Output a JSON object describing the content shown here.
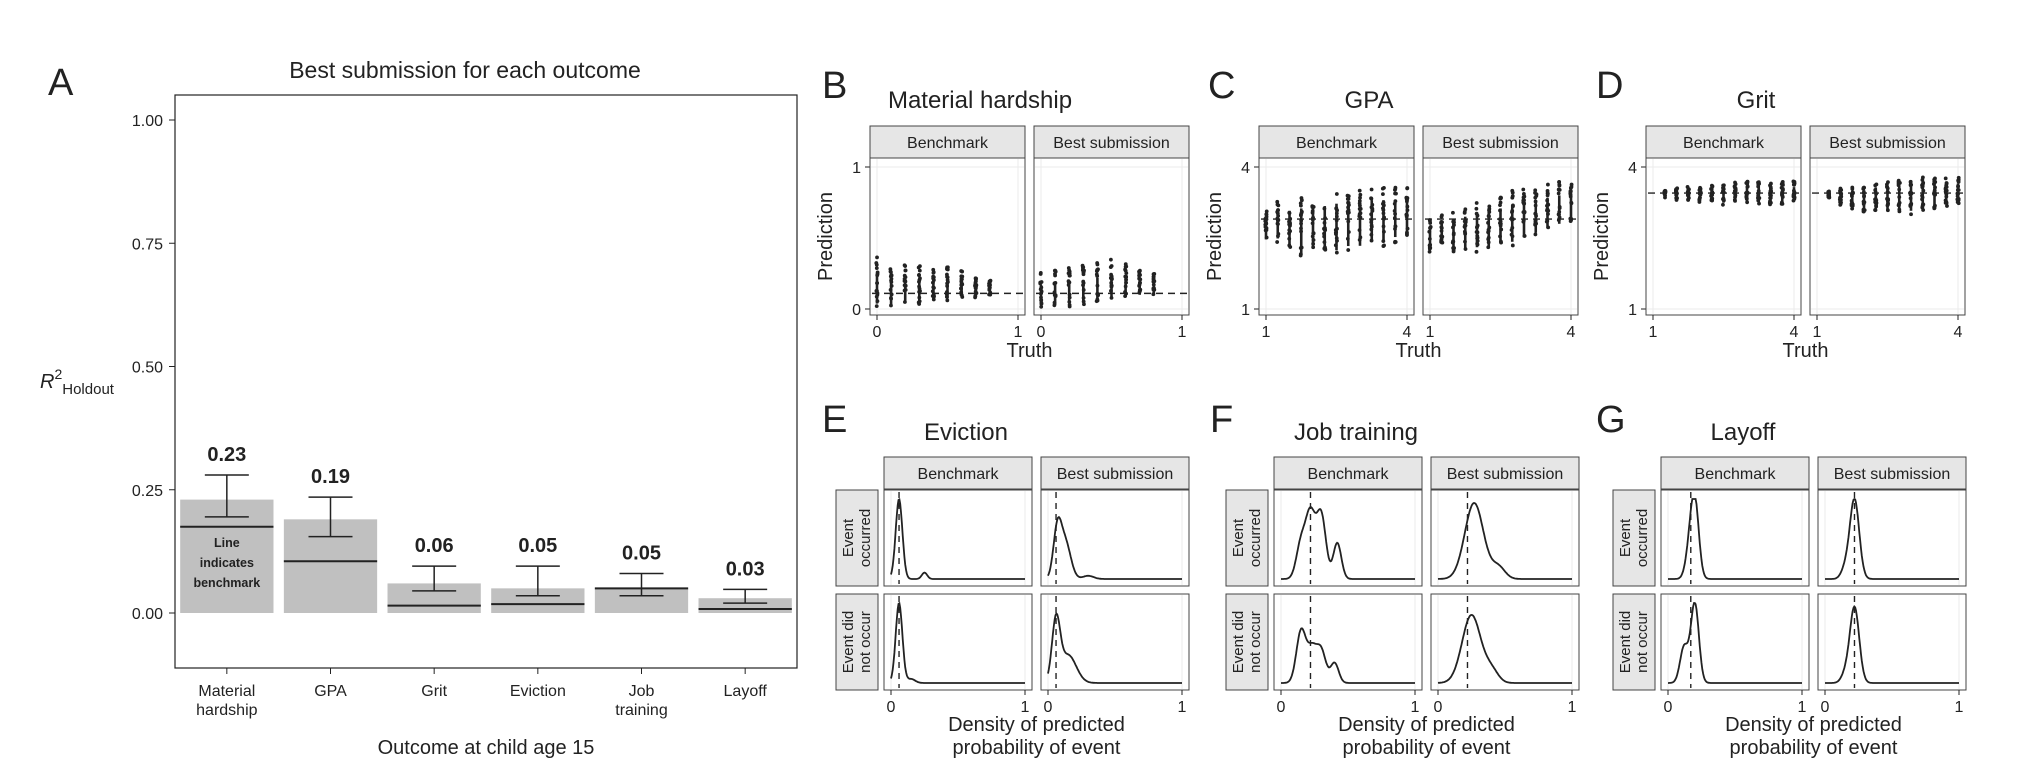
{
  "figure": {
    "panel_letters": {
      "A": "A",
      "B": "B",
      "C": "C",
      "D": "D",
      "E": "E",
      "F": "F",
      "G": "G"
    },
    "colors": {
      "bar": "#c0c0c0",
      "ink": "#222222",
      "strip": "#e6e6e6",
      "frame": "#444444",
      "grid": "#ebebeb"
    }
  },
  "chart_data": [
    {
      "id": "A",
      "type": "bar",
      "title": "Best submission for each outcome",
      "xlabel": "Outcome at child age 15",
      "ylabel": "R",
      "ylabel_sup": "2",
      "ylabel_sub": "Holdout",
      "ylim": [
        0,
        1
      ],
      "yticks": [
        "0.00",
        "0.25",
        "0.50",
        "0.75",
        "1.00"
      ],
      "categories": [
        [
          "Material",
          "hardship"
        ],
        [
          "GPA"
        ],
        [
          "Grit"
        ],
        [
          "Eviction"
        ],
        [
          "Job",
          "training"
        ],
        [
          "Layoff"
        ]
      ],
      "values": [
        0.23,
        0.19,
        0.06,
        0.05,
        0.05,
        0.03
      ],
      "value_labels": [
        "0.23",
        "0.19",
        "0.06",
        "0.05",
        "0.05",
        "0.03"
      ],
      "error_low": [
        0.195,
        0.155,
        0.045,
        0.035,
        0.035,
        0.02
      ],
      "error_high": [
        0.28,
        0.235,
        0.095,
        0.095,
        0.08,
        0.048
      ],
      "benchmark": [
        0.175,
        0.105,
        0.015,
        0.018,
        0.05,
        0.008
      ],
      "annotation": [
        "Line",
        "indicates",
        "benchmark"
      ]
    },
    {
      "id": "B",
      "type": "scatter",
      "title": "Material hardship",
      "xlabel": "Truth",
      "ylabel": "Prediction",
      "facets": [
        "Benchmark",
        "Best submission"
      ],
      "xlim": [
        0,
        1
      ],
      "ylim": [
        0,
        1
      ],
      "xticks": [
        "0",
        "1"
      ],
      "yticks": [
        "0",
        "1"
      ],
      "x_levels": [
        0,
        0.1,
        0.2,
        0.3,
        0.4,
        0.5,
        0.6,
        0.7,
        0.8
      ],
      "series": [
        {
          "facet": "Benchmark",
          "center": [
            0.09,
            0.1,
            0.1,
            0.11,
            0.11,
            0.12,
            0.12,
            0.12,
            0.12
          ],
          "lo": [
            0.0,
            0.0,
            0.02,
            0.03,
            0.04,
            0.05,
            0.07,
            0.08,
            0.1
          ],
          "hi": [
            0.38,
            0.3,
            0.31,
            0.31,
            0.3,
            0.3,
            0.28,
            0.22,
            0.2
          ]
        },
        {
          "facet": "Best submission",
          "center": [
            0.07,
            0.08,
            0.09,
            0.1,
            0.11,
            0.12,
            0.13,
            0.12,
            0.11
          ],
          "lo": [
            0.0,
            0.0,
            0.01,
            0.02,
            0.03,
            0.05,
            0.06,
            0.08,
            0.09
          ],
          "hi": [
            0.27,
            0.28,
            0.3,
            0.31,
            0.33,
            0.35,
            0.33,
            0.28,
            0.25
          ]
        }
      ],
      "reference_line": 0.11
    },
    {
      "id": "C",
      "type": "scatter",
      "title": "GPA",
      "xlabel": "Truth",
      "ylabel": "Prediction",
      "facets": [
        "Benchmark",
        "Best submission"
      ],
      "xlim": [
        1,
        4
      ],
      "ylim": [
        1,
        4
      ],
      "xticks": [
        "1",
        "4"
      ],
      "yticks": [
        "1",
        "4"
      ],
      "x_levels": [
        1.0,
        1.25,
        1.5,
        1.75,
        2.0,
        2.25,
        2.5,
        2.75,
        3.0,
        3.25,
        3.5,
        3.75,
        4.0
      ],
      "series": [
        {
          "facet": "Benchmark",
          "center": [
            2.8,
            2.85,
            2.85,
            2.9,
            2.9,
            2.9,
            2.95,
            2.95,
            2.95,
            3.0,
            3.0,
            3.0,
            3.0
          ],
          "lo": [
            2.4,
            2.4,
            2.2,
            2.0,
            2.2,
            2.15,
            2.1,
            2.2,
            2.2,
            2.3,
            2.3,
            2.4,
            2.5
          ],
          "hi": [
            3.1,
            3.3,
            3.3,
            3.35,
            3.4,
            3.45,
            3.5,
            3.5,
            3.55,
            3.6,
            3.6,
            3.6,
            3.6
          ]
        },
        {
          "facet": "Best submission",
          "center": [
            2.55,
            2.6,
            2.6,
            2.7,
            2.75,
            2.8,
            2.85,
            2.9,
            2.95,
            3.0,
            3.05,
            3.1,
            3.15
          ],
          "lo": [
            2.2,
            2.3,
            2.2,
            2.15,
            2.2,
            2.2,
            2.3,
            2.3,
            2.4,
            2.5,
            2.6,
            2.7,
            2.8
          ],
          "hi": [
            2.9,
            3.0,
            3.05,
            3.2,
            3.25,
            3.35,
            3.4,
            3.5,
            3.55,
            3.6,
            3.65,
            3.7,
            3.7
          ]
        }
      ],
      "reference_line": 2.9
    },
    {
      "id": "D",
      "type": "scatter",
      "title": "Grit",
      "xlabel": "Truth",
      "ylabel": "Prediction",
      "facets": [
        "Benchmark",
        "Best submission"
      ],
      "xlim": [
        1,
        4
      ],
      "ylim": [
        1,
        4
      ],
      "xticks": [
        "1",
        "4"
      ],
      "yticks": [
        "1",
        "4"
      ],
      "x_levels": [
        1.25,
        1.5,
        1.75,
        2.0,
        2.25,
        2.5,
        2.75,
        3.0,
        3.25,
        3.5,
        3.75,
        4.0
      ],
      "series": [
        {
          "facet": "Benchmark",
          "center": [
            3.45,
            3.45,
            3.45,
            3.45,
            3.45,
            3.45,
            3.45,
            3.45,
            3.45,
            3.45,
            3.45,
            3.45
          ],
          "lo": [
            3.35,
            3.3,
            3.3,
            3.25,
            3.25,
            3.2,
            3.2,
            3.2,
            3.2,
            3.2,
            3.2,
            3.25
          ],
          "hi": [
            3.5,
            3.55,
            3.6,
            3.6,
            3.65,
            3.65,
            3.7,
            3.7,
            3.7,
            3.7,
            3.7,
            3.7
          ]
        },
        {
          "facet": "Best submission",
          "center": [
            3.4,
            3.4,
            3.4,
            3.42,
            3.44,
            3.45,
            3.46,
            3.47,
            3.48,
            3.5,
            3.5,
            3.5
          ],
          "lo": [
            3.3,
            3.2,
            3.1,
            3.0,
            3.05,
            3.0,
            2.95,
            3.0,
            3.05,
            3.1,
            3.15,
            3.2
          ],
          "hi": [
            3.5,
            3.55,
            3.6,
            3.6,
            3.7,
            3.7,
            3.75,
            3.75,
            3.8,
            3.8,
            3.8,
            3.8
          ]
        }
      ],
      "reference_line": 3.45
    },
    {
      "id": "E",
      "type": "area",
      "title": "Eviction",
      "xlabel": [
        "Density of predicted",
        "probability of event"
      ],
      "facets": [
        "Benchmark",
        "Best submission"
      ],
      "rows": [
        [
          "Event",
          "occurred"
        ],
        [
          "Event did",
          "not occur"
        ]
      ],
      "xlim": [
        0,
        1
      ],
      "xticks": [
        "0",
        "1"
      ],
      "cells": [
        {
          "row": 0,
          "facet": 0,
          "vline": 0.06,
          "peaks": [
            [
              0.06,
              1.0,
              0.025
            ],
            [
              0.25,
              0.08,
              0.02
            ]
          ]
        },
        {
          "row": 0,
          "facet": 1,
          "vline": 0.06,
          "peaks": [
            [
              0.07,
              0.6,
              0.03
            ],
            [
              0.13,
              0.45,
              0.04
            ],
            [
              0.3,
              0.04,
              0.04
            ]
          ]
        },
        {
          "row": 1,
          "facet": 0,
          "vline": 0.06,
          "peaks": [
            [
              0.06,
              1.0,
              0.025
            ],
            [
              0.15,
              0.05,
              0.03
            ]
          ]
        },
        {
          "row": 1,
          "facet": 1,
          "vline": 0.06,
          "peaks": [
            [
              0.06,
              0.75,
              0.03
            ],
            [
              0.15,
              0.35,
              0.06
            ]
          ]
        }
      ]
    },
    {
      "id": "F",
      "type": "area",
      "title": "Job training",
      "xlabel": [
        "Density of predicted",
        "probability of event"
      ],
      "facets": [
        "Benchmark",
        "Best submission"
      ],
      "rows": [
        [
          "Event",
          "occurred"
        ],
        [
          "Event did",
          "not occur"
        ]
      ],
      "xlim": [
        0,
        1
      ],
      "xticks": [
        "0",
        "1"
      ],
      "cells": [
        {
          "row": 0,
          "facet": 0,
          "vline": 0.22,
          "peaks": [
            [
              0.15,
              0.45,
              0.035
            ],
            [
              0.22,
              0.78,
              0.035
            ],
            [
              0.3,
              0.8,
              0.035
            ],
            [
              0.42,
              0.45,
              0.03
            ]
          ]
        },
        {
          "row": 0,
          "facet": 1,
          "vline": 0.22,
          "peaks": [
            [
              0.27,
              0.95,
              0.07
            ],
            [
              0.45,
              0.15,
              0.05
            ]
          ]
        },
        {
          "row": 1,
          "facet": 0,
          "vline": 0.22,
          "peaks": [
            [
              0.15,
              0.65,
              0.035
            ],
            [
              0.23,
              0.4,
              0.035
            ],
            [
              0.3,
              0.4,
              0.035
            ],
            [
              0.4,
              0.25,
              0.03
            ]
          ]
        },
        {
          "row": 1,
          "facet": 1,
          "vline": 0.22,
          "peaks": [
            [
              0.25,
              0.85,
              0.07
            ],
            [
              0.4,
              0.15,
              0.05
            ]
          ]
        }
      ]
    },
    {
      "id": "G",
      "type": "area",
      "title": "Layoff",
      "xlabel": [
        "Density of predicted",
        "probability of event"
      ],
      "facets": [
        "Benchmark",
        "Best submission"
      ],
      "rows": [
        [
          "Event",
          "occurred"
        ],
        [
          "Event did",
          "not occur"
        ]
      ],
      "xlim": [
        0,
        1
      ],
      "xticks": [
        "0",
        "1"
      ],
      "cells": [
        {
          "row": 0,
          "facet": 0,
          "vline": 0.17,
          "peaks": [
            [
              0.16,
              0.3,
              0.03
            ],
            [
              0.2,
              0.95,
              0.03
            ]
          ]
        },
        {
          "row": 0,
          "facet": 1,
          "vline": 0.22,
          "peaks": [
            [
              0.22,
              1.0,
              0.035
            ],
            [
              0.15,
              0.12,
              0.03
            ]
          ]
        },
        {
          "row": 1,
          "facet": 0,
          "vline": 0.17,
          "peaks": [
            [
              0.12,
              0.45,
              0.03
            ],
            [
              0.2,
              1.0,
              0.03
            ]
          ]
        },
        {
          "row": 1,
          "facet": 1,
          "vline": 0.22,
          "peaks": [
            [
              0.22,
              0.95,
              0.035
            ],
            [
              0.15,
              0.1,
              0.03
            ]
          ]
        }
      ]
    }
  ]
}
